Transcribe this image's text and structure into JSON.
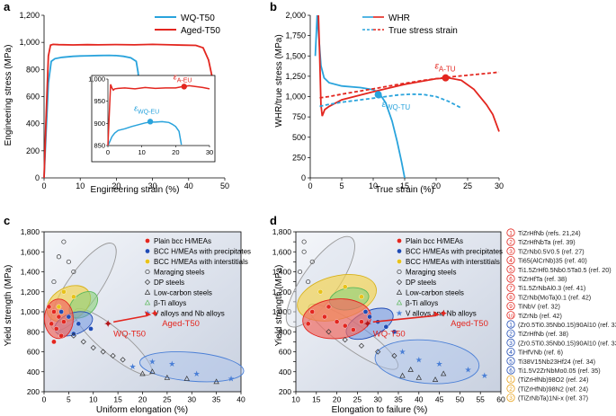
{
  "colors": {
    "wq": "#29a3dc",
    "aged": "#e3261f",
    "bcc": "#e3261f",
    "prec": "#1f4bb5",
    "interstitial": "#e8c21a",
    "beta": "#5cb85c",
    "vnb": "#4a7fd6",
    "gray": "#555555"
  },
  "chart_data": [
    {
      "panel": "a",
      "type": "line",
      "xlabel": "Engineering strain (%)",
      "ylabel": "Engineering stress (MPa)",
      "xlim": [
        0,
        50
      ],
      "ylim": [
        0,
        1200
      ],
      "xticks": [
        "0",
        "10",
        "20",
        "30",
        "40",
        "50"
      ],
      "yticks": [
        "0",
        "200",
        "400",
        "600",
        "800",
        "1,000",
        "1,200"
      ],
      "legend": "top-right",
      "series": [
        {
          "name": "WQ-T50",
          "color": "#29a3dc",
          "x": [
            0,
            0.5,
            1.2,
            2,
            3,
            5,
            8,
            10,
            12,
            15,
            18,
            20,
            22,
            24,
            25.5,
            26,
            26.5
          ],
          "y": [
            0,
            300,
            700,
            860,
            880,
            890,
            897,
            900,
            901,
            903,
            904,
            902,
            897,
            886,
            860,
            780,
            640
          ]
        },
        {
          "name": "Aged-T50",
          "color": "#e3261f",
          "x": [
            0,
            0.5,
            1.2,
            1.8,
            2.5,
            4,
            8,
            12,
            15,
            20,
            25,
            30,
            35,
            38,
            42,
            44,
            45.5,
            46.5
          ],
          "y": [
            0,
            400,
            900,
            980,
            985,
            983,
            981,
            983,
            982,
            984,
            982,
            985,
            982,
            980,
            978,
            960,
            870,
            745
          ]
        }
      ],
      "inset": {
        "xlim": [
          0,
          30
        ],
        "ylim": [
          850,
          1000
        ],
        "xticks": [
          "0",
          "10",
          "20",
          "30"
        ],
        "yticks": [
          "850",
          "900",
          "950",
          "1,000"
        ],
        "series": [
          {
            "name": "WQ-T50",
            "x": [
              0,
              0.6,
              1.2,
              2,
              3,
              5,
              7,
              9,
              11,
              12.5,
              14,
              16,
              18,
              19,
              20,
              21,
              21.7
            ],
            "y": [
              850,
              860,
              870,
              878,
              884,
              888,
              893,
              897,
              901,
              903,
              903,
              904,
              902,
              898,
              893,
              882,
              852
            ]
          },
          {
            "name": "Aged-T50",
            "x": [
              0,
              0.4,
              0.8,
              1.2,
              1.6,
              2,
              3,
              5,
              8,
              11,
              14,
              17,
              20,
              22,
              24,
              26,
              28,
              30
            ],
            "y": [
              850,
              920,
              988,
              980,
              975,
              978,
              979,
              980,
              978,
              981,
              979,
              980,
              980,
              983,
              985,
              983,
              981,
              978
            ]
          }
        ],
        "markers": [
          {
            "label": "ε",
            "sub": "WQ-EU",
            "x": 12.5,
            "y": 904
          },
          {
            "label": "ε",
            "sub": "A-EU",
            "x": 22.5,
            "y": 983
          }
        ]
      }
    },
    {
      "panel": "b",
      "type": "line",
      "xlabel": "True strain (%)",
      "ylabel": "WHR/true stress (MPa)",
      "xlim": [
        0,
        30
      ],
      "ylim": [
        0,
        2000
      ],
      "xticks": [
        "0",
        "5",
        "10",
        "15",
        "20",
        "25",
        "30"
      ],
      "yticks": [
        "0",
        "250",
        "500",
        "750",
        "1,000",
        "1,250",
        "1,500",
        "1,750",
        "2,000"
      ],
      "legend": "top-right",
      "legend_items": [
        "WHR",
        "True stress strain"
      ],
      "series": [
        {
          "name": "WQ WHR",
          "color": "#29a3dc",
          "dash": false,
          "x": [
            0.8,
            1.1,
            1.4,
            1.7,
            2.2,
            3,
            5,
            8,
            10,
            11,
            12,
            13,
            13.8,
            14.5,
            15
          ],
          "y": [
            1500,
            2000,
            1700,
            1380,
            1230,
            1170,
            1130,
            1110,
            1085,
            1040,
            920,
            700,
            450,
            200,
            0
          ]
        },
        {
          "name": "Aged WHR",
          "color": "#e3261f",
          "dash": false,
          "x": [
            1.3,
            1.5,
            1.7,
            1.9,
            2.3,
            3,
            5,
            10,
            15,
            20,
            22,
            24,
            26,
            28,
            29,
            30
          ],
          "y": [
            2000,
            1500,
            900,
            760,
            840,
            880,
            960,
            1060,
            1150,
            1220,
            1230,
            1200,
            1090,
            900,
            780,
            570
          ]
        },
        {
          "name": "WQ true",
          "color": "#29a3dc",
          "dash": true,
          "x": [
            1.5,
            3,
            5,
            8,
            10,
            12,
            14,
            16,
            18,
            20,
            22,
            24
          ],
          "y": [
            880,
            905,
            930,
            960,
            980,
            1000,
            1020,
            1030,
            1025,
            1000,
            940,
            860
          ]
        },
        {
          "name": "Aged true",
          "color": "#e3261f",
          "dash": true,
          "x": [
            1.5,
            3,
            5,
            8,
            10,
            14,
            18,
            22,
            26,
            30
          ],
          "y": [
            985,
            1000,
            1030,
            1070,
            1095,
            1150,
            1200,
            1240,
            1270,
            1300
          ]
        }
      ],
      "markers": [
        {
          "label": "ε",
          "sub": "WQ-TU",
          "x": 10.8,
          "y": 1025,
          "color": "#29a3dc"
        },
        {
          "label": "ε",
          "sub": "A-TU",
          "x": 21.5,
          "y": 1230,
          "color": "#e3261f"
        }
      ]
    },
    {
      "panel": "c",
      "type": "scatter",
      "xlabel": "Uniform elongation (%)",
      "ylabel": "Yield strength (MPa)",
      "xlim": [
        0,
        40
      ],
      "ylim": [
        200,
        1800
      ],
      "xticks": [
        "0",
        "5",
        "10",
        "15",
        "20",
        "25",
        "30",
        "35",
        "40"
      ],
      "yticks": [
        "200",
        "400",
        "600",
        "800",
        "1,000",
        "1,200",
        "1,400",
        "1,600",
        "1,800"
      ],
      "legend": [
        {
          "label": "Plain bcc H/MEAs",
          "mark": "dot",
          "color": "#e3261f"
        },
        {
          "label": "BCC H/MEAs with precipitates",
          "mark": "dot",
          "color": "#1f4bb5"
        },
        {
          "label": "BCC H/MEAs with interstitials",
          "mark": "dot",
          "color": "#e8c21a"
        },
        {
          "label": "Maraging steels",
          "mark": "circle",
          "color": "#333333"
        },
        {
          "label": "DP steels",
          "mark": "diamond",
          "color": "#333333"
        },
        {
          "label": "Low-carbon steels",
          "mark": "triangle",
          "color": "#333333"
        },
        {
          "label": "β-Ti alloys",
          "mark": "triangle",
          "color": "#5cb85c"
        },
        {
          "label": "V alloys and Nb alloys",
          "mark": "star",
          "color": "#4a7fd6"
        }
      ],
      "points": [
        {
          "label": "WQ-T50",
          "x": 13,
          "y": 880
        },
        {
          "label": "Aged-T50",
          "x": 22.5,
          "y": 980
        }
      ]
    },
    {
      "panel": "d",
      "type": "scatter",
      "xlabel": "Elongation to failure (%)",
      "ylabel": "Yield strength (MPa)",
      "xlim": [
        10,
        60
      ],
      "ylim": [
        200,
        1800
      ],
      "xticks": [
        "10",
        "15",
        "20",
        "25",
        "30",
        "35",
        "40",
        "45",
        "50",
        "55",
        "60"
      ],
      "yticks": [
        "200",
        "300",
        "400",
        "500",
        "600",
        "700",
        "800",
        "900",
        "1,000",
        "1,100",
        "1,200",
        "1,300",
        "1,400",
        "1,500",
        "1,600",
        "1,700",
        "1,800"
      ],
      "legend": [
        {
          "label": "Plain bcc H/MEAs",
          "mark": "dot",
          "color": "#e3261f"
        },
        {
          "label": "BCC H/MEAs with precipitates",
          "mark": "dot",
          "color": "#1f4bb5"
        },
        {
          "label": "BCC H/MEAs with interstitials",
          "mark": "dot",
          "color": "#e8c21a"
        },
        {
          "label": "Maraging steels",
          "mark": "circle",
          "color": "#333333"
        },
        {
          "label": "DP steels",
          "mark": "diamond",
          "color": "#333333"
        },
        {
          "label": "Low-carbon steels",
          "mark": "triangle",
          "color": "#333333"
        },
        {
          "label": "β-Ti alloys",
          "mark": "triangle",
          "color": "#5cb85c"
        },
        {
          "label": "V alloys and Nb alloys",
          "mark": "star",
          "color": "#4a7fd6"
        }
      ],
      "points": [
        {
          "label": "WQ-T50",
          "x": 27.5,
          "y": 880
        },
        {
          "label": "Aged-T50",
          "x": 46,
          "y": 980
        }
      ],
      "references": [
        {
          "n": "1",
          "text": "TiZrHfNb (refs. 21,24)",
          "color": "#e3261f"
        },
        {
          "n": "2",
          "text": "TiZrHfNbTa (ref. 39)",
          "color": "#e3261f"
        },
        {
          "n": "3",
          "text": "TiZrNb0.5V0.5 (ref. 27)",
          "color": "#e3261f"
        },
        {
          "n": "4",
          "text": "Ti65(AlCrNb)35 (ref. 40)",
          "color": "#e3261f"
        },
        {
          "n": "5",
          "text": "Ti1.5ZrHf0.5Nb0.5Ta0.5 (ref. 20)",
          "color": "#e3261f"
        },
        {
          "n": "6",
          "text": "TiZrHfTa (ref. 38)",
          "color": "#e3261f"
        },
        {
          "n": "7",
          "text": "Ti1.5ZrNbAl0.3 (ref. 41)",
          "color": "#e3261f"
        },
        {
          "n": "8",
          "text": "TiZrNb(MoTa)0.1 (ref. 42)",
          "color": "#e3261f"
        },
        {
          "n": "9",
          "text": "TiNbV (ref. 32)",
          "color": "#e3261f"
        },
        {
          "n": "10",
          "text": "TiZrNb (ref. 42)",
          "color": "#e3261f"
        },
        {
          "n": "1",
          "text": "(Zr0.5Ti0.35Nb0.15)90Al10 (ref. 33)",
          "color": "#1f4bb5"
        },
        {
          "n": "2",
          "text": "TiZrHfNb (ref. 38)",
          "color": "#1f4bb5"
        },
        {
          "n": "3",
          "text": "(Zr0.5Ti0.35Nb0.15)90Al10 (ref. 33)",
          "color": "#1f4bb5"
        },
        {
          "n": "4",
          "text": "TiHfVNb (ref. 6)",
          "color": "#1f4bb5"
        },
        {
          "n": "5",
          "text": "Ti38V15Nb23Hf24 (ref. 34)",
          "color": "#1f4bb5"
        },
        {
          "n": "6",
          "text": "Ti1.5V2ZrNbMo0.05 (ref. 35)",
          "color": "#1f4bb5"
        },
        {
          "n": "1",
          "text": "(TiZrHfNb)98O2 (ref. 24)",
          "color": "#e8a21a"
        },
        {
          "n": "2",
          "text": "(TiZrHfNb)98N2 (ref. 24)",
          "color": "#e8a21a"
        },
        {
          "n": "3",
          "text": "(TiZrNbTa)1Ni-x (ref. 37)",
          "color": "#e8a21a"
        }
      ]
    }
  ],
  "panel_labels": [
    "a",
    "b",
    "c",
    "d"
  ],
  "legend_a": [
    "WQ-T50",
    "Aged-T50"
  ],
  "legend_b": [
    "WHR",
    "True stress strain"
  ]
}
